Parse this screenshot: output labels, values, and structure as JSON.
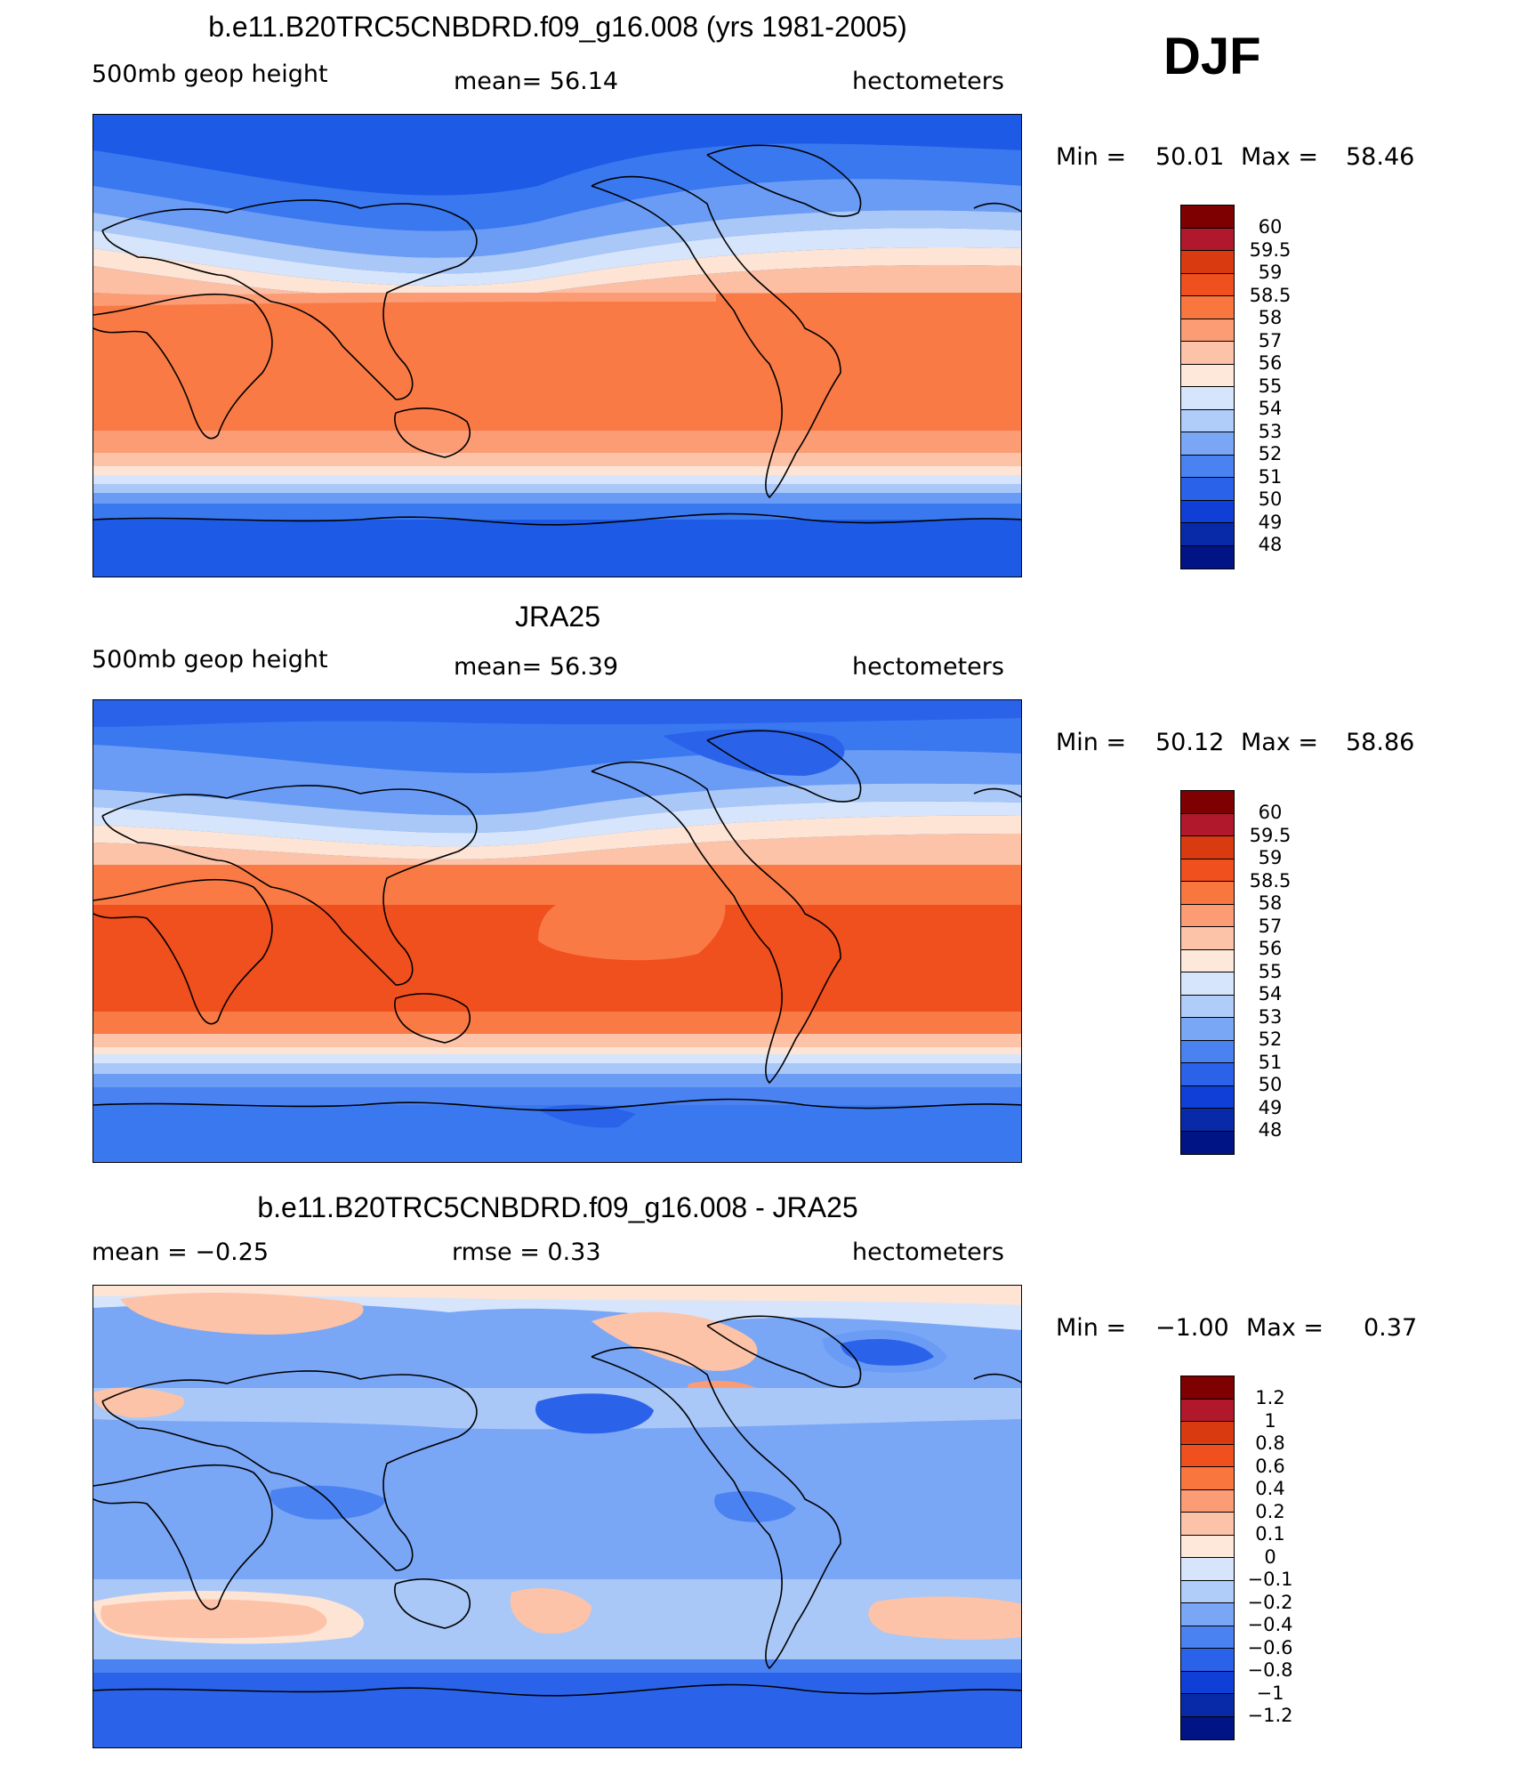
{
  "season": "DJF",
  "colors": {
    "main_scale": [
      "#fee0d2",
      "#fcbba1",
      "#fc9272",
      "#fb6a4a",
      "#ef3b2c",
      "#cb181d",
      "#a50f15"
    ],
    "diff_scale": [
      "#08306b",
      "#08519c",
      "#2171b5",
      "#4292c6",
      "#6baed6",
      "#9ecae1",
      "#c6dbef",
      "#fff5eb",
      "#fdd0a2",
      "#fdae6b",
      "#fd8d3c",
      "#e6550d",
      "#a63603"
    ]
  },
  "panels": [
    {
      "title": "b.e11.B20TRC5CNBDRD.f09_g16.008 (yrs 1981-2005)",
      "left_label": "500mb  geop  height",
      "center_label": "mean=   56.14",
      "right_label": "hectometers",
      "min_label": "Min  =",
      "min_value": "50.01",
      "max_label": "Max  =",
      "max_value": "58.46",
      "colorbar_labels": [
        "60",
        "59.5",
        "59",
        "58.5",
        "58",
        "57",
        "56",
        "55",
        "54",
        "53",
        "52",
        "51",
        "50",
        "49",
        "48"
      ]
    },
    {
      "title": "JRA25",
      "left_label": "500mb  geop  height",
      "center_label": "mean=   56.39",
      "right_label": "hectometers",
      "min_label": "Min  =",
      "min_value": "50.12",
      "max_label": "Max  =",
      "max_value": "58.86",
      "colorbar_labels": [
        "60",
        "59.5",
        "59",
        "58.5",
        "58",
        "57",
        "56",
        "55",
        "54",
        "53",
        "52",
        "51",
        "50",
        "49",
        "48"
      ]
    },
    {
      "title": "b.e11.B20TRC5CNBDRD.f09_g16.008 - JRA25",
      "left_label": "mean  =    −0.25",
      "center_label": "rmse  =     0.33",
      "right_label": "hectometers",
      "min_label": "Min  =",
      "min_value": "−1.00",
      "max_label": "Max  =",
      "max_value": "0.37",
      "colorbar_labels": [
        "1.2",
        "1",
        "0.8",
        "0.6",
        "0.4",
        "0.2",
        "0.1",
        "0",
        "−0.1",
        "−0.2",
        "−0.4",
        "−0.6",
        "−0.8",
        "−1",
        "−1.2"
      ]
    }
  ]
}
